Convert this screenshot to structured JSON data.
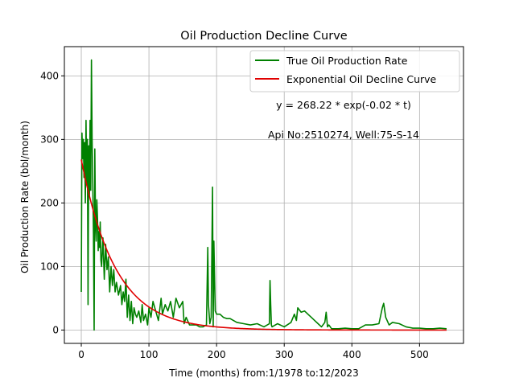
{
  "chart_data": {
    "type": "line",
    "title": "Oil Production Decline Curve",
    "xlabel": "Time (months) from:1/1978 to:12/2023",
    "ylabel": "Oil Production Rate (bbl/month)",
    "xlim": [
      -25,
      565
    ],
    "ylim": [
      -21,
      446
    ],
    "xticks": [
      0,
      100,
      200,
      300,
      400,
      500
    ],
    "yticks": [
      0,
      100,
      200,
      300,
      400
    ],
    "grid": true,
    "legend_position": "top-right",
    "annotations": [
      "y = 268.22 * exp(-0.02 * t)",
      "Api No:2510274, Well:75-S-14"
    ],
    "series": [
      {
        "name": "True Oil Production Rate",
        "color": "#008000",
        "x": [
          0,
          1,
          2,
          3,
          4,
          5,
          6,
          7,
          8,
          9,
          10,
          11,
          12,
          13,
          14,
          15,
          16,
          17,
          18,
          19,
          20,
          21,
          22,
          23,
          24,
          25,
          26,
          27,
          28,
          29,
          30,
          32,
          34,
          36,
          38,
          40,
          42,
          44,
          46,
          48,
          50,
          52,
          55,
          58,
          60,
          62,
          64,
          66,
          68,
          70,
          72,
          74,
          76,
          78,
          80,
          82,
          85,
          88,
          90,
          92,
          95,
          98,
          100,
          103,
          106,
          110,
          114,
          118,
          120,
          124,
          128,
          132,
          136,
          140,
          145,
          150,
          152,
          155,
          160,
          165,
          170,
          175,
          180,
          185,
          187,
          188,
          190,
          192,
          194,
          195,
          196,
          198,
          200,
          205,
          210,
          215,
          220,
          230,
          240,
          250,
          260,
          270,
          278,
          279,
          280,
          281,
          282,
          290,
          300,
          310,
          315,
          318,
          320,
          325,
          330,
          335,
          340,
          345,
          350,
          355,
          360,
          362,
          364,
          366,
          370,
          380,
          390,
          400,
          410,
          420,
          430,
          440,
          445,
          447,
          450,
          455,
          460,
          470,
          480,
          490,
          500,
          510,
          520,
          530,
          540
        ],
        "y": [
          60,
          310,
          270,
          300,
          240,
          295,
          200,
          330,
          230,
          300,
          40,
          290,
          210,
          330,
          220,
          425,
          300,
          230,
          150,
          0,
          285,
          170,
          140,
          205,
          175,
          125,
          155,
          130,
          170,
          110,
          100,
          145,
          80,
          135,
          95,
          115,
          60,
          100,
          70,
          95,
          60,
          75,
          55,
          70,
          40,
          60,
          45,
          80,
          20,
          55,
          15,
          45,
          10,
          35,
          25,
          20,
          30,
          12,
          40,
          15,
          25,
          8,
          35,
          20,
          45,
          30,
          15,
          50,
          25,
          40,
          30,
          45,
          20,
          50,
          35,
          45,
          10,
          20,
          8,
          8,
          8,
          5,
          5,
          8,
          130,
          40,
          10,
          20,
          225,
          5,
          140,
          30,
          25,
          25,
          20,
          18,
          18,
          12,
          10,
          8,
          10,
          5,
          10,
          78,
          40,
          8,
          5,
          10,
          5,
          12,
          25,
          15,
          35,
          28,
          30,
          25,
          20,
          15,
          10,
          5,
          12,
          28,
          5,
          8,
          2,
          2,
          3,
          2,
          2,
          8,
          8,
          10,
          35,
          42,
          20,
          8,
          12,
          10,
          5,
          3,
          3,
          2,
          2,
          3,
          2
        ]
      },
      {
        "name": "Exponential Oil Decline Curve",
        "color": "#e00000",
        "fit": {
          "a": 268.22,
          "b": -0.02
        },
        "x": [
          0,
          10,
          20,
          30,
          40,
          50,
          60,
          70,
          80,
          90,
          100,
          110,
          120,
          140,
          160,
          180,
          200,
          220,
          240,
          260,
          280,
          300,
          340,
          380,
          420,
          460,
          500,
          540
        ],
        "y": [
          268.22,
          219.6,
          179.8,
          147.2,
          120.5,
          98.7,
          80.8,
          66.1,
          54.1,
          44.3,
          36.3,
          29.7,
          24.3,
          16.3,
          10.9,
          7.3,
          4.9,
          3.3,
          2.2,
          1.5,
          1.0,
          0.7,
          0.3,
          0.1,
          0.1,
          0.0,
          0.0,
          0.0
        ]
      }
    ]
  }
}
